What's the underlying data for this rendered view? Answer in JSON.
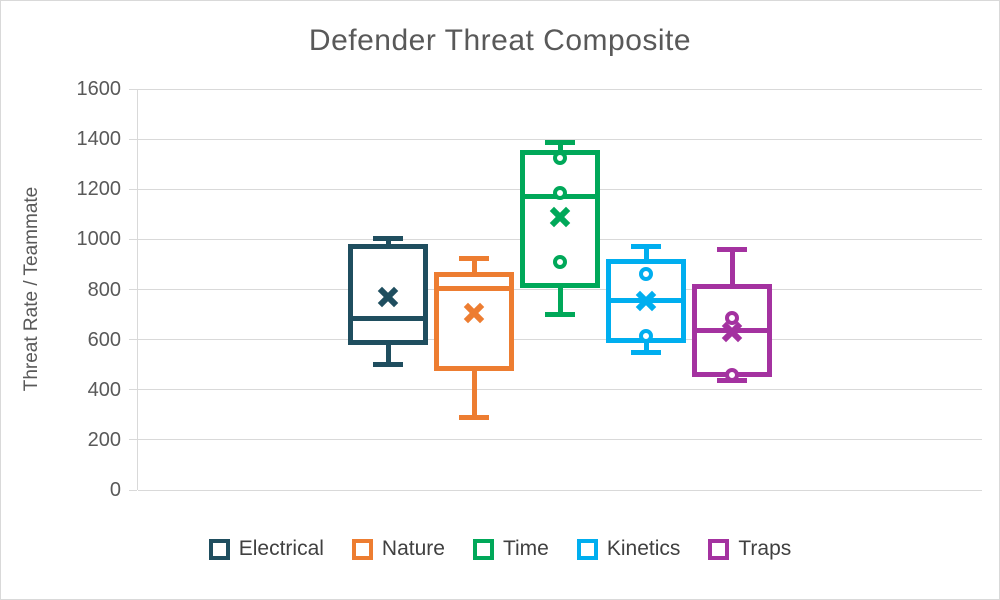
{
  "window": {
    "background": "#ffffff",
    "frame_border_color": "#d9d9d9"
  },
  "chart_data": {
    "type": "boxplot",
    "title": "Defender Threat Composite",
    "title_color": "#595959",
    "ylabel": "Threat Rate / Teammate",
    "xlabel": "",
    "ylim": [
      0,
      1600
    ],
    "yticks": [
      0,
      200,
      400,
      600,
      800,
      1000,
      1200,
      1400,
      1600
    ],
    "grid": true,
    "gridline_color": "#d9d9d9",
    "axis_text_color": "#595959",
    "legend_position": "bottom",
    "legend_text_color": "#404040",
    "series": [
      {
        "name": "Electrical",
        "color": "#1f4e5f",
        "min": 500,
        "q1": 580,
        "median": 685,
        "q3": 980,
        "max": 1005,
        "mean": 770,
        "points": []
      },
      {
        "name": "Nature",
        "color": "#ed7d31",
        "min": 290,
        "q1": 475,
        "median": 805,
        "q3": 870,
        "max": 925,
        "mean": 705,
        "points": []
      },
      {
        "name": "Time",
        "color": "#00a859",
        "min": 700,
        "q1": 805,
        "median": 1170,
        "q3": 1355,
        "max": 1385,
        "mean": 1090,
        "points": [
          1325,
          1185,
          910
        ]
      },
      {
        "name": "Kinetics",
        "color": "#00aeef",
        "min": 550,
        "q1": 585,
        "median": 755,
        "q3": 920,
        "max": 970,
        "mean": 755,
        "points": [
          860,
          615
        ]
      },
      {
        "name": "Traps",
        "color": "#a432a0",
        "min": 435,
        "q1": 450,
        "median": 635,
        "q3": 820,
        "max": 960,
        "mean": 630,
        "points": [
          685,
          460
        ]
      }
    ]
  }
}
